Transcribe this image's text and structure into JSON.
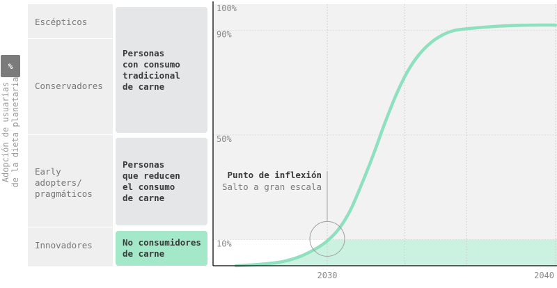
{
  "badge": "%",
  "axis_title": {
    "line1": "Adopción de usuarias",
    "line2": "de la dieta planetaria"
  },
  "segments": [
    {
      "label": "Escépticos"
    },
    {
      "label": "Conservadores"
    },
    {
      "label": "Early\nadopters/\npragmáticos"
    },
    {
      "label": "Innovadores"
    }
  ],
  "groups": [
    {
      "label": "Personas\ncon consumo\ntradicional\nde carne"
    },
    {
      "label": "Personas\nque reducen\nel consumo\nde carne"
    },
    {
      "label": "No consumidores\nde carne"
    }
  ],
  "colors": {
    "curve": "#8fe0bf",
    "fill_low": "#cbf2e0",
    "fill_high": "#f2f2f2",
    "green_box": "#a3e8c9",
    "gray_box": "#e5e6e8",
    "axis": "#2a2a2a"
  },
  "chart_data": {
    "type": "area",
    "y_axis": {
      "ticks": [
        {
          "value": 10,
          "label": "10%"
        },
        {
          "value": 50,
          "label": "50%"
        },
        {
          "value": 90,
          "label": "90%"
        },
        {
          "value": 100,
          "label": "100%"
        }
      ],
      "ylim": [
        0,
        100
      ]
    },
    "x_axis": {
      "ticks": [
        {
          "value": 2030,
          "label": "2030"
        },
        {
          "value": 2040,
          "label": "2040"
        }
      ],
      "xlim": [
        2025,
        2040
      ]
    },
    "series": [
      {
        "x": [
          2026.0,
          2027.0,
          2028.0,
          2028.8,
          2029.5,
          2030.0,
          2030.5,
          2031.0,
          2031.5,
          2032.0,
          2032.5,
          2033.0,
          2033.5,
          2034.0,
          2034.5,
          2035.0,
          2035.5,
          2036.0,
          2037.0,
          2038.0,
          2039.0,
          2040.0
        ],
        "y": [
          0.0,
          0.5,
          1.5,
          3.5,
          6.5,
          9.5,
          14.0,
          21.0,
          31.0,
          42.0,
          54.0,
          65.0,
          74.0,
          80.5,
          85.0,
          88.0,
          89.8,
          90.5,
          91.3,
          91.8,
          92.0,
          92.0
        ]
      }
    ],
    "annotation": {
      "title": "Punto de inflexión",
      "subtitle": "Salto a gran escala",
      "x": 2030,
      "y": 10
    }
  }
}
